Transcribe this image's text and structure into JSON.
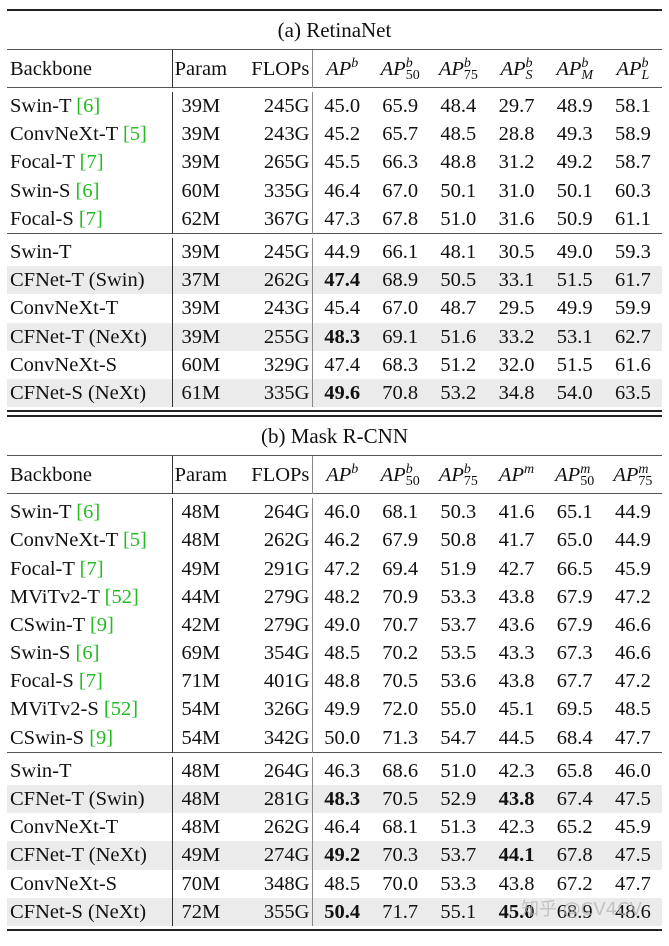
{
  "tables": [
    {
      "caption": "(a) RetinaNet",
      "headers": {
        "backbone": "Backbone",
        "param": "Param",
        "flops": "FLOPs",
        "metrics": [
          {
            "base": "AP",
            "sup": "b",
            "sub": ""
          },
          {
            "base": "AP",
            "sup": "b",
            "sub": "50"
          },
          {
            "base": "AP",
            "sup": "b",
            "sub": "75"
          },
          {
            "base": "AP",
            "sup": "b",
            "sub": "S"
          },
          {
            "base": "AP",
            "sup": "b",
            "sub": "M"
          },
          {
            "base": "AP",
            "sup": "b",
            "sub": "L"
          }
        ]
      },
      "groups": [
        [
          {
            "name": "Swin-T",
            "cite": "[6]",
            "param": "39M",
            "flops": "245G",
            "values": [
              "45.0",
              "65.9",
              "48.4",
              "29.7",
              "48.9",
              "58.1"
            ],
            "bold": [],
            "shade": false
          },
          {
            "name": "ConvNeXt-T",
            "cite": "[5]",
            "param": "39M",
            "flops": "243G",
            "values": [
              "45.2",
              "65.7",
              "48.5",
              "28.8",
              "49.3",
              "58.9"
            ],
            "bold": [],
            "shade": false
          },
          {
            "name": "Focal-T",
            "cite": "[7]",
            "param": "39M",
            "flops": "265G",
            "values": [
              "45.5",
              "66.3",
              "48.8",
              "31.2",
              "49.2",
              "58.7"
            ],
            "bold": [],
            "shade": false
          },
          {
            "name": "Swin-S",
            "cite": "[6]",
            "param": "60M",
            "flops": "335G",
            "values": [
              "46.4",
              "67.0",
              "50.1",
              "31.0",
              "50.1",
              "60.3"
            ],
            "bold": [],
            "shade": false
          },
          {
            "name": "Focal-S",
            "cite": "[7]",
            "param": "62M",
            "flops": "367G",
            "values": [
              "47.3",
              "67.8",
              "51.0",
              "31.6",
              "50.9",
              "61.1"
            ],
            "bold": [],
            "shade": false
          }
        ],
        [
          {
            "name": "Swin-T",
            "cite": "",
            "param": "39M",
            "flops": "245G",
            "values": [
              "44.9",
              "66.1",
              "48.1",
              "30.5",
              "49.0",
              "59.3"
            ],
            "bold": [],
            "shade": false
          },
          {
            "name": "CFNet-T (Swin)",
            "cite": "",
            "param": "37M",
            "flops": "262G",
            "values": [
              "47.4",
              "68.9",
              "50.5",
              "33.1",
              "51.5",
              "61.7"
            ],
            "bold": [
              0
            ],
            "shade": true
          },
          {
            "name": "ConvNeXt-T",
            "cite": "",
            "param": "39M",
            "flops": "243G",
            "values": [
              "45.4",
              "67.0",
              "48.7",
              "29.5",
              "49.9",
              "59.9"
            ],
            "bold": [],
            "shade": false
          },
          {
            "name": "CFNet-T (NeXt)",
            "cite": "",
            "param": "39M",
            "flops": "255G",
            "values": [
              "48.3",
              "69.1",
              "51.6",
              "33.2",
              "53.1",
              "62.7"
            ],
            "bold": [
              0
            ],
            "shade": true
          },
          {
            "name": "ConvNeXt-S",
            "cite": "",
            "param": "60M",
            "flops": "329G",
            "values": [
              "47.4",
              "68.3",
              "51.2",
              "32.0",
              "51.5",
              "61.6"
            ],
            "bold": [],
            "shade": false
          },
          {
            "name": "CFNet-S (NeXt)",
            "cite": "",
            "param": "61M",
            "flops": "335G",
            "values": [
              "49.6",
              "70.8",
              "53.2",
              "34.8",
              "54.0",
              "63.5"
            ],
            "bold": [
              0
            ],
            "shade": true
          }
        ]
      ]
    },
    {
      "caption": "(b) Mask R-CNN",
      "headers": {
        "backbone": "Backbone",
        "param": "Param",
        "flops": "FLOPs",
        "metrics": [
          {
            "base": "AP",
            "sup": "b",
            "sub": ""
          },
          {
            "base": "AP",
            "sup": "b",
            "sub": "50"
          },
          {
            "base": "AP",
            "sup": "b",
            "sub": "75"
          },
          {
            "base": "AP",
            "sup": "m",
            "sub": ""
          },
          {
            "base": "AP",
            "sup": "m",
            "sub": "50"
          },
          {
            "base": "AP",
            "sup": "m",
            "sub": "75"
          }
        ]
      },
      "groups": [
        [
          {
            "name": "Swin-T",
            "cite": "[6]",
            "param": "48M",
            "flops": "264G",
            "values": [
              "46.0",
              "68.1",
              "50.3",
              "41.6",
              "65.1",
              "44.9"
            ],
            "bold": [],
            "shade": false
          },
          {
            "name": "ConvNeXt-T",
            "cite": "[5]",
            "param": "48M",
            "flops": "262G",
            "values": [
              "46.2",
              "67.9",
              "50.8",
              "41.7",
              "65.0",
              "44.9"
            ],
            "bold": [],
            "shade": false
          },
          {
            "name": "Focal-T",
            "cite": "[7]",
            "param": "49M",
            "flops": "291G",
            "values": [
              "47.2",
              "69.4",
              "51.9",
              "42.7",
              "66.5",
              "45.9"
            ],
            "bold": [],
            "shade": false
          },
          {
            "name": "MViTv2-T",
            "cite": "[52]",
            "param": "44M",
            "flops": "279G",
            "values": [
              "48.2",
              "70.9",
              "53.3",
              "43.8",
              "67.9",
              "47.2"
            ],
            "bold": [],
            "shade": false
          },
          {
            "name": "CSwin-T",
            "cite": "[9]",
            "param": "42M",
            "flops": "279G",
            "values": [
              "49.0",
              "70.7",
              "53.7",
              "43.6",
              "67.9",
              "46.6"
            ],
            "bold": [],
            "shade": false
          },
          {
            "name": "Swin-S",
            "cite": "[6]",
            "param": "69M",
            "flops": "354G",
            "values": [
              "48.5",
              "70.2",
              "53.5",
              "43.3",
              "67.3",
              "46.6"
            ],
            "bold": [],
            "shade": false
          },
          {
            "name": "Focal-S",
            "cite": "[7]",
            "param": "71M",
            "flops": "401G",
            "values": [
              "48.8",
              "70.5",
              "53.6",
              "43.8",
              "67.7",
              "47.2"
            ],
            "bold": [],
            "shade": false
          },
          {
            "name": "MViTv2-S",
            "cite": "[52]",
            "param": "54M",
            "flops": "326G",
            "values": [
              "49.9",
              "72.0",
              "55.0",
              "45.1",
              "69.5",
              "48.5"
            ],
            "bold": [],
            "shade": false
          },
          {
            "name": "CSwin-S",
            "cite": "[9]",
            "param": "54M",
            "flops": "342G",
            "values": [
              "50.0",
              "71.3",
              "54.7",
              "44.5",
              "68.4",
              "47.7"
            ],
            "bold": [],
            "shade": false
          }
        ],
        [
          {
            "name": "Swin-T",
            "cite": "",
            "param": "48M",
            "flops": "264G",
            "values": [
              "46.3",
              "68.6",
              "51.0",
              "42.3",
              "65.8",
              "46.0"
            ],
            "bold": [],
            "shade": false
          },
          {
            "name": "CFNet-T (Swin)",
            "cite": "",
            "param": "48M",
            "flops": "281G",
            "values": [
              "48.3",
              "70.5",
              "52.9",
              "43.8",
              "67.4",
              "47.5"
            ],
            "bold": [
              0,
              3
            ],
            "shade": true
          },
          {
            "name": "ConvNeXt-T",
            "cite": "",
            "param": "48M",
            "flops": "262G",
            "values": [
              "46.4",
              "68.1",
              "51.3",
              "42.3",
              "65.2",
              "45.9"
            ],
            "bold": [],
            "shade": false
          },
          {
            "name": "CFNet-T (NeXt)",
            "cite": "",
            "param": "49M",
            "flops": "274G",
            "values": [
              "49.2",
              "70.3",
              "53.7",
              "44.1",
              "67.8",
              "47.5"
            ],
            "bold": [
              0,
              3
            ],
            "shade": true
          },
          {
            "name": "ConvNeXt-S",
            "cite": "",
            "param": "70M",
            "flops": "348G",
            "values": [
              "48.5",
              "70.0",
              "53.3",
              "43.8",
              "67.2",
              "47.7"
            ],
            "bold": [],
            "shade": false
          },
          {
            "name": "CFNet-S (NeXt)",
            "cite": "",
            "param": "72M",
            "flops": "355G",
            "values": [
              "50.4",
              "71.7",
              "55.1",
              "45.0",
              "68.9",
              "48.6"
            ],
            "bold": [
              0,
              3
            ],
            "shade": true
          }
        ]
      ]
    }
  ],
  "watermark": "知乎 @CV4CV"
}
